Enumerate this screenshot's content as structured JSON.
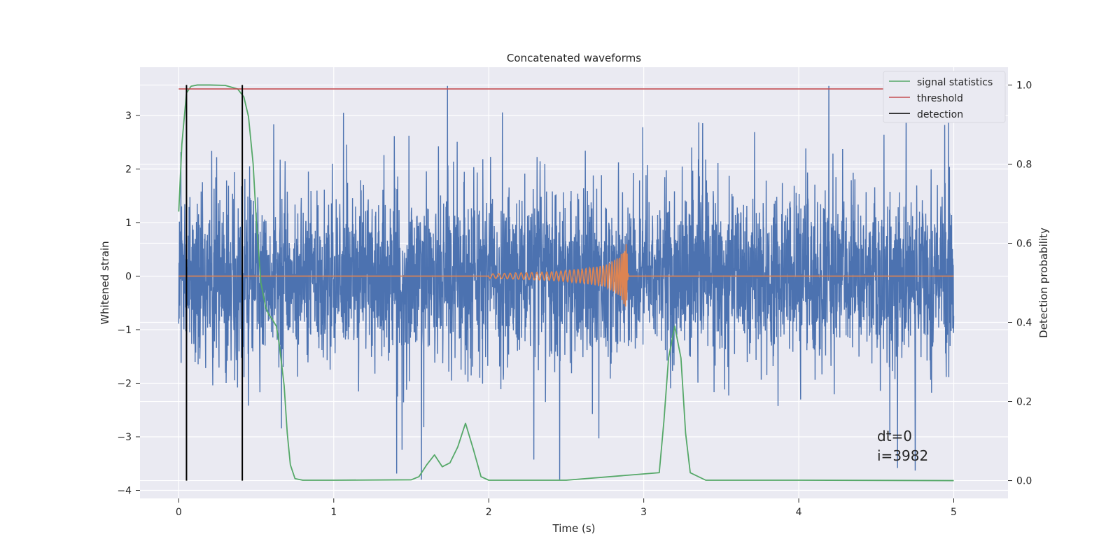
{
  "chart_data": {
    "type": "line",
    "title": "Concatenated waveforms",
    "xlabel": "Time (s)",
    "ylabel_left": "Whitened strain",
    "ylabel_right": "Detection probability",
    "xlim": [
      -0.25,
      5.35
    ],
    "ylim_left": [
      -4.15,
      3.9
    ],
    "ylim_right": [
      -0.045,
      1.045
    ],
    "x_ticks": [
      0,
      1,
      2,
      3,
      4,
      5
    ],
    "y_ticks_left": [
      -4,
      -3,
      -2,
      -1,
      0,
      1,
      2,
      3
    ],
    "y_ticks_right": [
      0.0,
      0.2,
      0.4,
      0.6,
      0.8,
      1.0
    ],
    "grid": true,
    "legend_position": "top-right",
    "series": [
      {
        "name": "",
        "axis": "left",
        "color": "#4c72b0",
        "description_points": {
          "x_start": 0,
          "x_end": 5,
          "dense_band": [
            -0.9,
            0.6
          ],
          "spike_range": [
            -3.8,
            3.55
          ]
        }
      },
      {
        "name": "",
        "axis": "left",
        "color": "#dd8452",
        "x": [
          0,
          2.0,
          2.2,
          2.4,
          2.6,
          2.75,
          2.85,
          2.89,
          2.9,
          5
        ],
        "envelope": [
          0,
          0.04,
          0.06,
          0.08,
          0.13,
          0.2,
          0.38,
          0.65,
          0,
          0
        ]
      },
      {
        "name": "signal statistics",
        "axis": "right",
        "color": "#55a868",
        "x": [
          0,
          0.02,
          0.05,
          0.08,
          0.12,
          0.2,
          0.3,
          0.38,
          0.42,
          0.45,
          0.48,
          0.5,
          0.53,
          0.56,
          0.58,
          0.6,
          0.63,
          0.65,
          0.68,
          0.7,
          0.72,
          0.75,
          0.8,
          1.0,
          1.5,
          1.55,
          1.6,
          1.65,
          1.7,
          1.75,
          1.8,
          1.85,
          1.9,
          1.95,
          2.0,
          2.5,
          3.1,
          3.13,
          3.16,
          3.2,
          3.24,
          3.27,
          3.3,
          3.4,
          4.0,
          5.0
        ],
        "y": [
          0.68,
          0.85,
          0.98,
          0.997,
          1.0,
          1.0,
          0.999,
          0.99,
          0.97,
          0.92,
          0.8,
          0.66,
          0.5,
          0.44,
          0.42,
          0.41,
          0.39,
          0.34,
          0.24,
          0.12,
          0.04,
          0.005,
          0.001,
          0.001,
          0.002,
          0.01,
          0.04,
          0.065,
          0.035,
          0.045,
          0.085,
          0.145,
          0.08,
          0.01,
          0.001,
          0.001,
          0.02,
          0.15,
          0.31,
          0.39,
          0.31,
          0.12,
          0.02,
          0.001,
          0.001,
          0.0
        ]
      },
      {
        "name": "threshold",
        "axis": "right",
        "color": "#c44e52",
        "x": [
          0,
          5
        ],
        "y": [
          0.99,
          0.99
        ]
      },
      {
        "name": "detection",
        "axis": "right",
        "color": "#000000",
        "x": [
          0.05,
          0.41
        ],
        "y_range": [
          0.0,
          1.0
        ]
      }
    ],
    "annotations": [
      "dt=0",
      "i=3982"
    ]
  },
  "colors": {
    "axes_bg": "#eaeaf2",
    "grid": "#ffffff",
    "strain": "#4c72b0",
    "injection": "#dd8452"
  }
}
